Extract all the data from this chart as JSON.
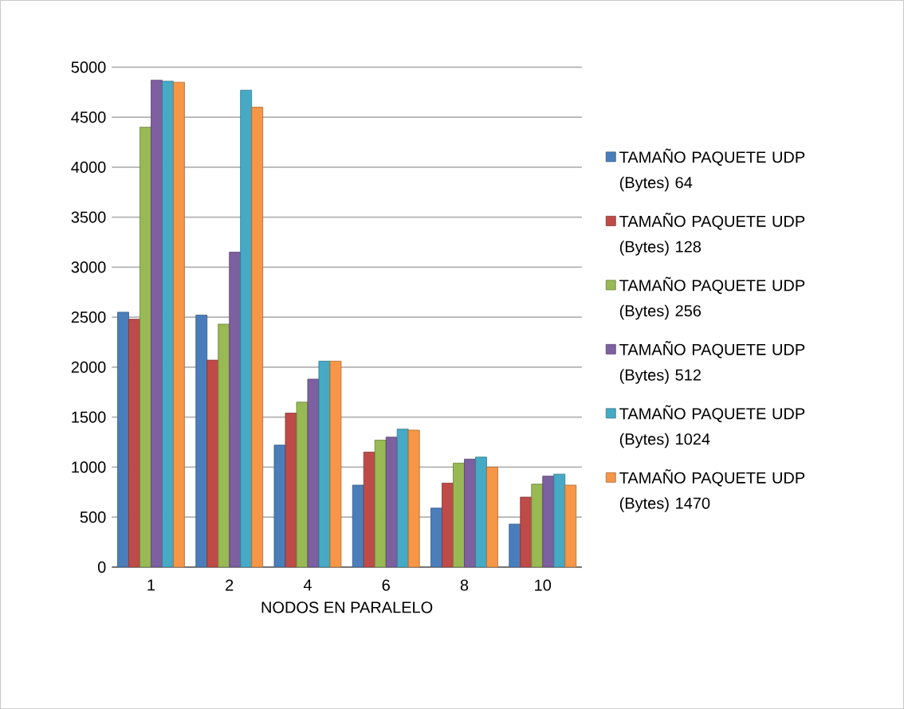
{
  "chart_data": {
    "type": "bar",
    "xlabel": "NODOS EN PARALELO",
    "categories": [
      "1",
      "2",
      "4",
      "6",
      "8",
      "10"
    ],
    "series": [
      {
        "name": "TAMAÑO PAQUETE UDP (Bytes) 64",
        "color": "#4a7ebb",
        "values": [
          2550,
          2520,
          1220,
          820,
          590,
          430
        ]
      },
      {
        "name": "TAMAÑO PAQUETE UDP (Bytes) 128",
        "color": "#be4b48",
        "values": [
          2480,
          2070,
          1540,
          1150,
          840,
          700
        ]
      },
      {
        "name": "TAMAÑO PAQUETE UDP (Bytes) 256",
        "color": "#98b954",
        "values": [
          4400,
          2430,
          1650,
          1270,
          1040,
          830
        ]
      },
      {
        "name": "TAMAÑO PAQUETE UDP (Bytes) 512",
        "color": "#7d60a0",
        "values": [
          4870,
          3150,
          1880,
          1300,
          1080,
          910
        ]
      },
      {
        "name": "TAMAÑO PAQUETE UDP (Bytes) 1024",
        "color": "#46aac5",
        "values": [
          4860,
          4770,
          2060,
          1380,
          1100,
          930
        ]
      },
      {
        "name": "TAMAÑO PAQUETE UDP (Bytes) 1470",
        "color": "#f79646",
        "values": [
          4850,
          4600,
          2060,
          1370,
          1000,
          820
        ]
      }
    ],
    "ylim": [
      0,
      5000
    ],
    "yticks": [
      0,
      500,
      1000,
      1500,
      2000,
      2500,
      3000,
      3500,
      4000,
      4500,
      5000
    ],
    "grid": "y",
    "legend": "right"
  }
}
